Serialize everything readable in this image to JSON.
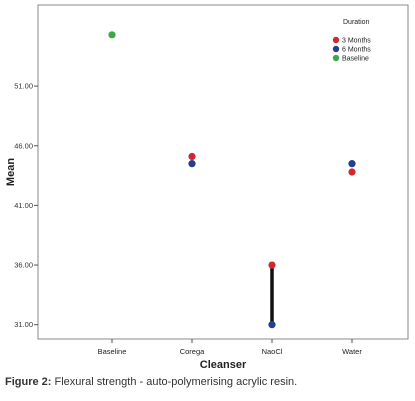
{
  "caption": {
    "label": "Figure 2:",
    "text": " Flexural strength - auto-polymerising acrylic resin."
  },
  "chart_data": {
    "type": "scatter",
    "xlabel": "Cleanser",
    "ylabel": "Mean",
    "categories": [
      "Baseline",
      "Corega",
      "NaoCl",
      "Water"
    ],
    "y_ticks": [
      "31.00",
      "36.00",
      "41.00",
      "46.00",
      "51.00"
    ],
    "ylim": [
      29.8,
      57.8
    ],
    "grid": false,
    "legend": {
      "title": "Duration",
      "position": "top-right"
    },
    "series": [
      {
        "name": "3 Months",
        "color": "#d22630",
        "values": [
          null,
          45.1,
          36.0,
          43.8
        ]
      },
      {
        "name": "6 Months",
        "color": "#233f8f",
        "values": [
          null,
          44.5,
          31.0,
          44.5
        ]
      },
      {
        "name": "Baseline",
        "color": "#3aa84a",
        "values": [
          55.3,
          null,
          null,
          null
        ]
      }
    ],
    "range_lines": [
      {
        "category": "NaoCl",
        "from": 31.0,
        "to": 36.0
      }
    ]
  }
}
